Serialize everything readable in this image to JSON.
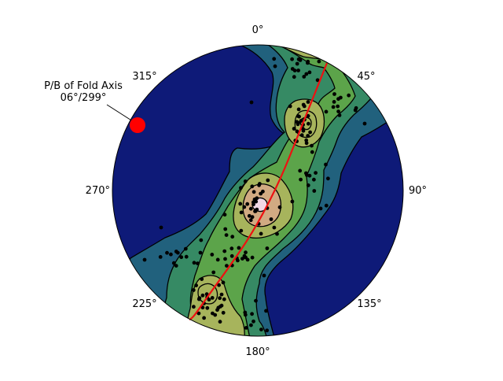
{
  "compass_labels": {
    "n": "0°",
    "ne": "45°",
    "e": "90°",
    "se": "135°",
    "s": "180°",
    "sw": "225°",
    "w": "270°",
    "nw": "315°"
  },
  "annotation": {
    "line1": "P/B of Fold Axis",
    "line2": "06°/299°"
  },
  "colors": {
    "level0": "#0e1a78",
    "level1": "#21617d",
    "level2": "#368a64",
    "level3": "#5ca44a",
    "level4": "#a7b45c",
    "level5": "#d1aa82",
    "level6": "#f2d8e6",
    "great_circle": "#ee1111",
    "fold_axis": "#ff0000",
    "poles": "#000000"
  }
}
